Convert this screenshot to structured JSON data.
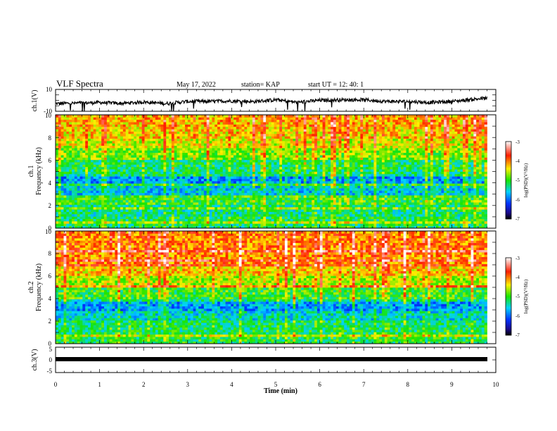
{
  "header": {
    "title": "VLF Spectra",
    "date": "May 17, 2022",
    "station": "station= KAP",
    "start": "start  UT  =   12: 40: 1"
  },
  "chart_data": [
    {
      "type": "line",
      "panel": "ch1-voltage",
      "ylabel": "ch.1(V)",
      "ylim": [
        -10,
        10
      ],
      "yticks": [
        "10",
        "-10"
      ],
      "xlim": [
        0,
        10
      ],
      "series_color": "#000000",
      "x": [
        0,
        0.5,
        1,
        1.5,
        2,
        2.5,
        3,
        3.5,
        4,
        4.5,
        5,
        5.5,
        6,
        6.5,
        7,
        7.5,
        8,
        8.5,
        9,
        9.5,
        9.8
      ],
      "values": [
        -3,
        -2.5,
        -2,
        -2.8,
        -1.5,
        -3,
        -1,
        -1,
        -0.5,
        -1.2,
        0.5,
        -1.8,
        0,
        0.5,
        0.5,
        -1,
        -1,
        -2,
        -1,
        1,
        2
      ]
    },
    {
      "type": "heatmap",
      "panel": "ch1-spectrogram",
      "ylabel": "ch.1",
      "ylabel2": "Frequency (kHz)",
      "ylim": [
        0,
        10
      ],
      "yticks": [
        "0",
        "2",
        "4",
        "6",
        "8",
        "10"
      ],
      "xlim": [
        0,
        10
      ],
      "band_levels_bottom_to_top": [
        -5.2,
        -5.3,
        -5.0,
        -5.6,
        -5.8,
        -5.2,
        -4.8,
        -4.5,
        -4.3,
        -4.2
      ],
      "colorbar": {
        "label": "log(PSD)(V²/Hz)",
        "range": [
          -7,
          -3
        ],
        "ticks": [
          "-3",
          "-4",
          "-5",
          "-6",
          "-7"
        ]
      }
    },
    {
      "type": "heatmap",
      "panel": "ch2-spectrogram",
      "ylabel": "ch.2",
      "ylabel2": "Frequency (kHz)",
      "ylim": [
        0,
        10
      ],
      "yticks": [
        "0",
        "2",
        "4",
        "6",
        "8",
        "10"
      ],
      "xlim": [
        0,
        10
      ],
      "band_levels_bottom_to_top": [
        -5.1,
        -5.2,
        -5.5,
        -5.8,
        -5.0,
        -4.6,
        -4.3,
        -4.1,
        -4.0,
        -4.0
      ],
      "colorbar": {
        "label": "log(PSD)(V²/Hz)",
        "range": [
          -7,
          -3
        ],
        "ticks": [
          "-3",
          "-4",
          "-5",
          "-6",
          "-7"
        ]
      }
    },
    {
      "type": "line",
      "panel": "ch3-voltage",
      "ylabel": "ch.3(V)",
      "ylim": [
        -5,
        5
      ],
      "yticks": [
        "5",
        "0",
        "-5"
      ],
      "xlim": [
        0,
        10
      ],
      "xlabel": "Time (min)",
      "xticks": [
        "0",
        "1",
        "2",
        "3",
        "4",
        "5",
        "6",
        "7",
        "8",
        "9",
        "10"
      ],
      "series_color": "#000000",
      "x": [
        0,
        9.8
      ],
      "values": [
        0,
        0
      ]
    }
  ]
}
